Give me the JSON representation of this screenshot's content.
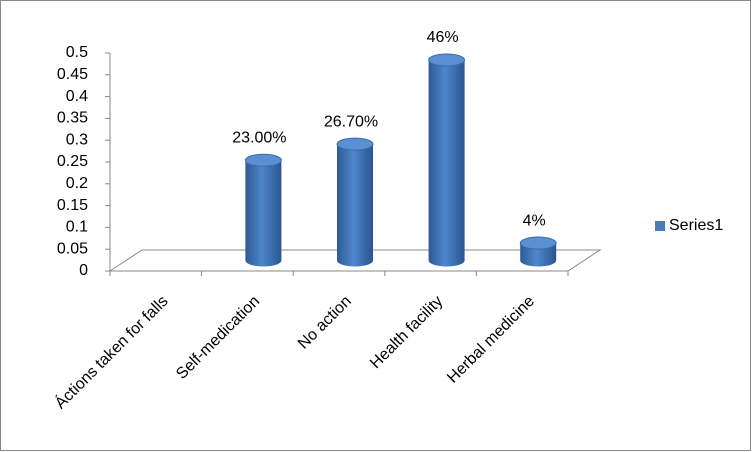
{
  "chart_data": {
    "type": "bar3d",
    "categories": [
      "Áctions taken for falls",
      "Self-medication",
      "No action",
      "Health facility",
      "Herbal medicine"
    ],
    "series": [
      {
        "name": "Series1",
        "color": "#4a7ebb",
        "values": [
          null,
          0.23,
          0.267,
          0.46,
          0.04
        ],
        "value_labels": [
          null,
          "23.00%",
          "26.70%",
          "46%",
          "4%"
        ]
      }
    ],
    "ylim": [
      0,
      0.5
    ],
    "yticks": [
      0,
      0.05,
      0.1,
      0.15,
      0.2,
      0.25,
      0.3,
      0.35,
      0.4,
      0.45,
      0.5
    ],
    "legend": "right"
  }
}
